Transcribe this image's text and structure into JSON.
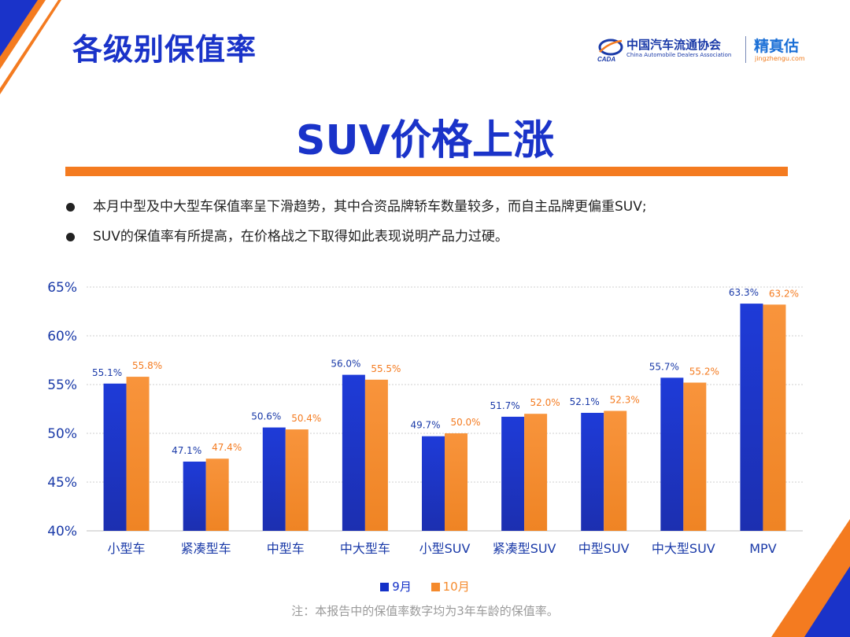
{
  "header": {
    "title": "各级别保值率",
    "logo": {
      "org_cn": "中国汽车流通协会",
      "org_en": "China Automobile Dealers Association",
      "brand": "精真估",
      "brand_url": "jingzhengu.com",
      "mark_text": "CADA"
    }
  },
  "headline": "SUV价格上涨",
  "bullets": [
    "本月中型及中大型车保值率呈下滑趋势，其中合资品牌轿车数量较多，而自主品牌更偏重SUV;",
    "SUV的保值率有所提高，在价格战之下取得如此表现说明产品力过硬。"
  ],
  "colors": {
    "accent_blue": "#1a33c9",
    "accent_orange": "#f47b20",
    "series_sep": "#1431c8",
    "series_oct": "#f58a2c"
  },
  "chart_data": {
    "type": "bar",
    "categories": [
      "小型车",
      "紧凑型车",
      "中型车",
      "中大型车",
      "小型SUV",
      "紧凑型SUV",
      "中型SUV",
      "中大型SUV",
      "MPV"
    ],
    "series": [
      {
        "name": "9月",
        "values": [
          55.1,
          47.1,
          50.6,
          56.0,
          49.7,
          51.7,
          52.1,
          55.7,
          63.3
        ],
        "labels": [
          "55.1%",
          "47.1%",
          "50.6%",
          "56.0%",
          "49.7%",
          "51.7%",
          "52.1%",
          "55.7%",
          "63.3%"
        ],
        "color": "#1431c8"
      },
      {
        "name": "10月",
        "values": [
          55.8,
          47.4,
          50.4,
          55.5,
          50.0,
          52.0,
          52.3,
          55.2,
          63.2
        ],
        "labels": [
          "55.8%",
          "47.4%",
          "50.4%",
          "55.5%",
          "50.0%",
          "52.0%",
          "52.3%",
          "55.2%",
          "63.2%"
        ],
        "color": "#f58a2c"
      }
    ],
    "yticks": [
      "40%",
      "45%",
      "50%",
      "55%",
      "60%",
      "65%"
    ],
    "ytick_values": [
      40,
      45,
      50,
      55,
      60,
      65
    ],
    "ylim": [
      40,
      65
    ],
    "grid": true,
    "legend_position": "bottom-center"
  },
  "footnote": "注：本报告中的保值率数字均为3年车龄的保值率。"
}
